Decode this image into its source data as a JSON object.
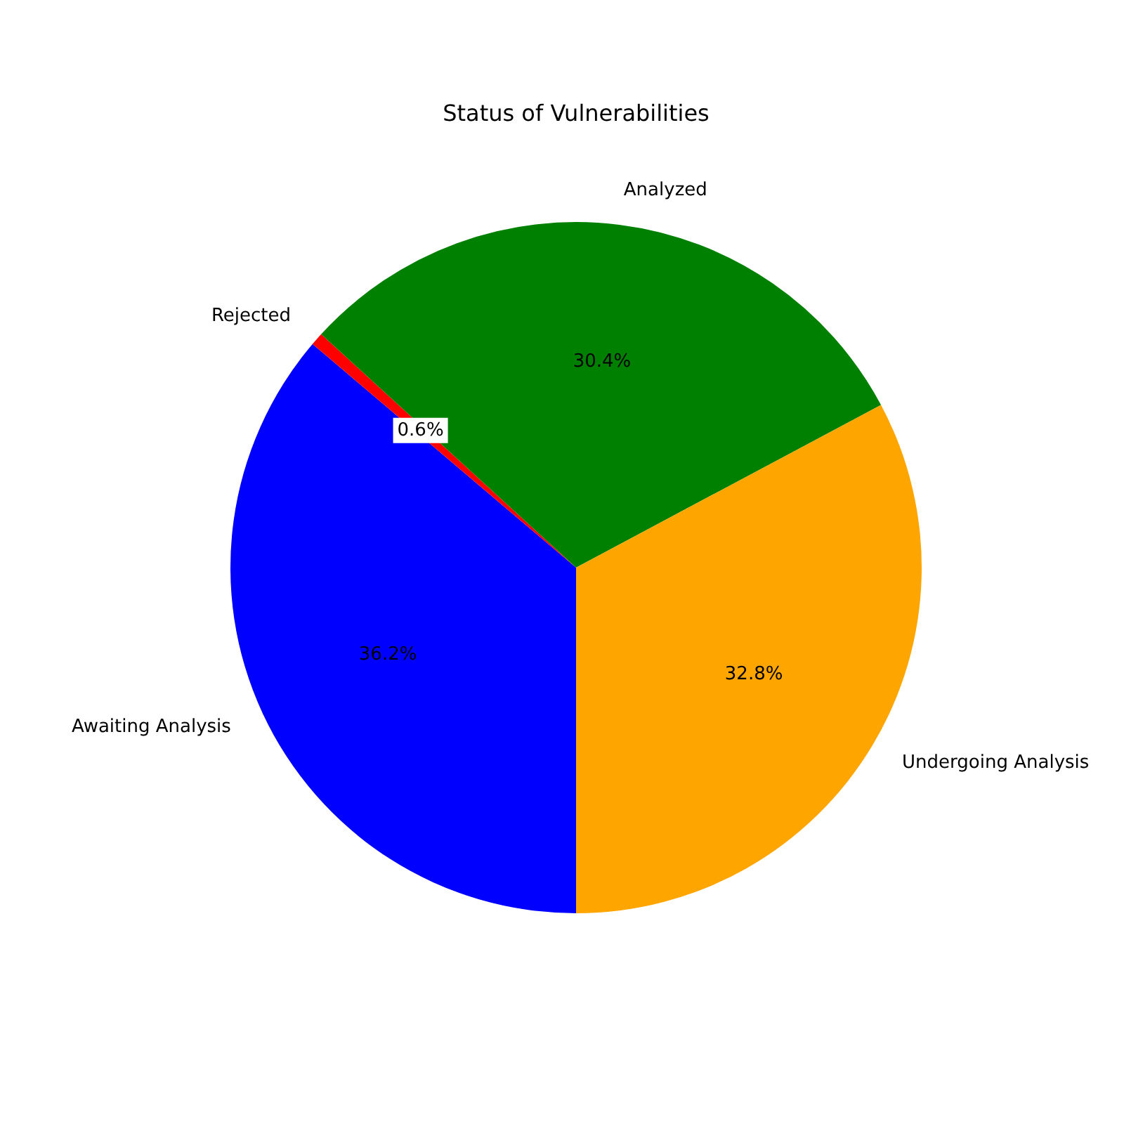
{
  "chart_data": {
    "type": "pie",
    "title": "Status of Vulnerabilities",
    "categories": [
      "Awaiting Analysis",
      "Rejected",
      "Analyzed",
      "Undergoing Analysis"
    ],
    "values": [
      36.2,
      0.6,
      30.4,
      32.8
    ],
    "value_labels": [
      "36.2%",
      "0.6%",
      "30.4%",
      "32.8%"
    ],
    "colors": [
      "#0000ff",
      "#ff0000",
      "#008000",
      "#ffa500"
    ],
    "legend": false
  }
}
